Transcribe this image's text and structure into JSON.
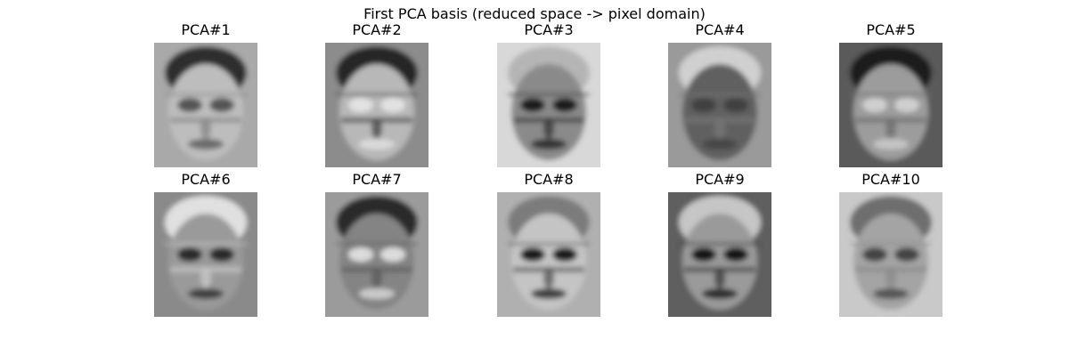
{
  "figure": {
    "suptitle": "First PCA basis (reduced space -> pixel domain)",
    "panels": [
      {
        "title": "PCA#1",
        "tone": {
          "bg": "#a9a9a9",
          "face": "#bdbdbd",
          "hair": "#2e2e2e",
          "eyes": "#555555",
          "bands": "#888888"
        }
      },
      {
        "title": "PCA#2",
        "tone": {
          "bg": "#8c8c8c",
          "face": "#b8b8b8",
          "hair": "#262626",
          "eyes": "#e2e2e2",
          "bands": "#4a4a4a"
        }
      },
      {
        "title": "PCA#3",
        "tone": {
          "bg": "#d8d8d8",
          "face": "#8a8a8a",
          "hair": "#b5b5b5",
          "eyes": "#1e1e1e",
          "bands": "#3a3a3a"
        }
      },
      {
        "title": "PCA#4",
        "tone": {
          "bg": "#9a9a9a",
          "face": "#606060",
          "hair": "#d0d0d0",
          "eyes": "#404040",
          "bands": "#777777"
        }
      },
      {
        "title": "PCA#5",
        "tone": {
          "bg": "#5a5a5a",
          "face": "#9c9c9c",
          "hair": "#1e1e1e",
          "eyes": "#cfcfcf",
          "bands": "#6e6e6e"
        }
      },
      {
        "title": "PCA#6",
        "tone": {
          "bg": "#8a8a8a",
          "face": "#9a9a9a",
          "hair": "#e0e0e0",
          "eyes": "#2a2a2a",
          "bands": "#c8c8c8"
        }
      },
      {
        "title": "PCA#7",
        "tone": {
          "bg": "#9b9b9b",
          "face": "#848484",
          "hair": "#2a2a2a",
          "eyes": "#dcdcdc",
          "bands": "#5c5c5c"
        }
      },
      {
        "title": "PCA#8",
        "tone": {
          "bg": "#b0b0b0",
          "face": "#c4c4c4",
          "hair": "#7c7c7c",
          "eyes": "#1e1e1e",
          "bands": "#5a5a5a"
        }
      },
      {
        "title": "PCA#9",
        "tone": {
          "bg": "#5e5e5e",
          "face": "#9a9a9a",
          "hair": "#c6c6c6",
          "eyes": "#141414",
          "bands": "#3e3e3e"
        }
      },
      {
        "title": "PCA#10",
        "tone": {
          "bg": "#c9c9c9",
          "face": "#a4a4a4",
          "hair": "#6e6e6e",
          "eyes": "#444444",
          "bands": "#8a8a8a"
        }
      }
    ]
  }
}
